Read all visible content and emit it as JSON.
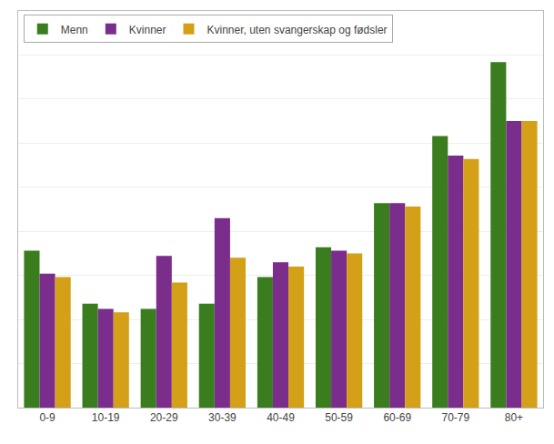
{
  "chart_data": {
    "type": "bar",
    "categories": [
      "0-9",
      "10-19",
      "20-29",
      "30-39",
      "40-49",
      "50-59",
      "60-69",
      "70-79",
      "80+"
    ],
    "series": [
      {
        "name": "Menn",
        "color": "#3a7d1e",
        "values": [
          178,
          118,
          112,
          118,
          148,
          182,
          232,
          308,
          392
        ]
      },
      {
        "name": "Kvinner",
        "color": "#7b2d8b",
        "values": [
          152,
          112,
          172,
          215,
          165,
          178,
          232,
          286,
          325
        ]
      },
      {
        "name": "Kvinner, uten svangerskap og fødsler",
        "color": "#d4a017",
        "values": [
          148,
          108,
          142,
          170,
          160,
          175,
          228,
          282,
          325
        ]
      }
    ],
    "ylim": [
      0,
      450
    ],
    "yticks": [
      50,
      100,
      150,
      200,
      250,
      300,
      350,
      400
    ],
    "grid": true,
    "legend": "upper left",
    "tick_labels": "x"
  }
}
